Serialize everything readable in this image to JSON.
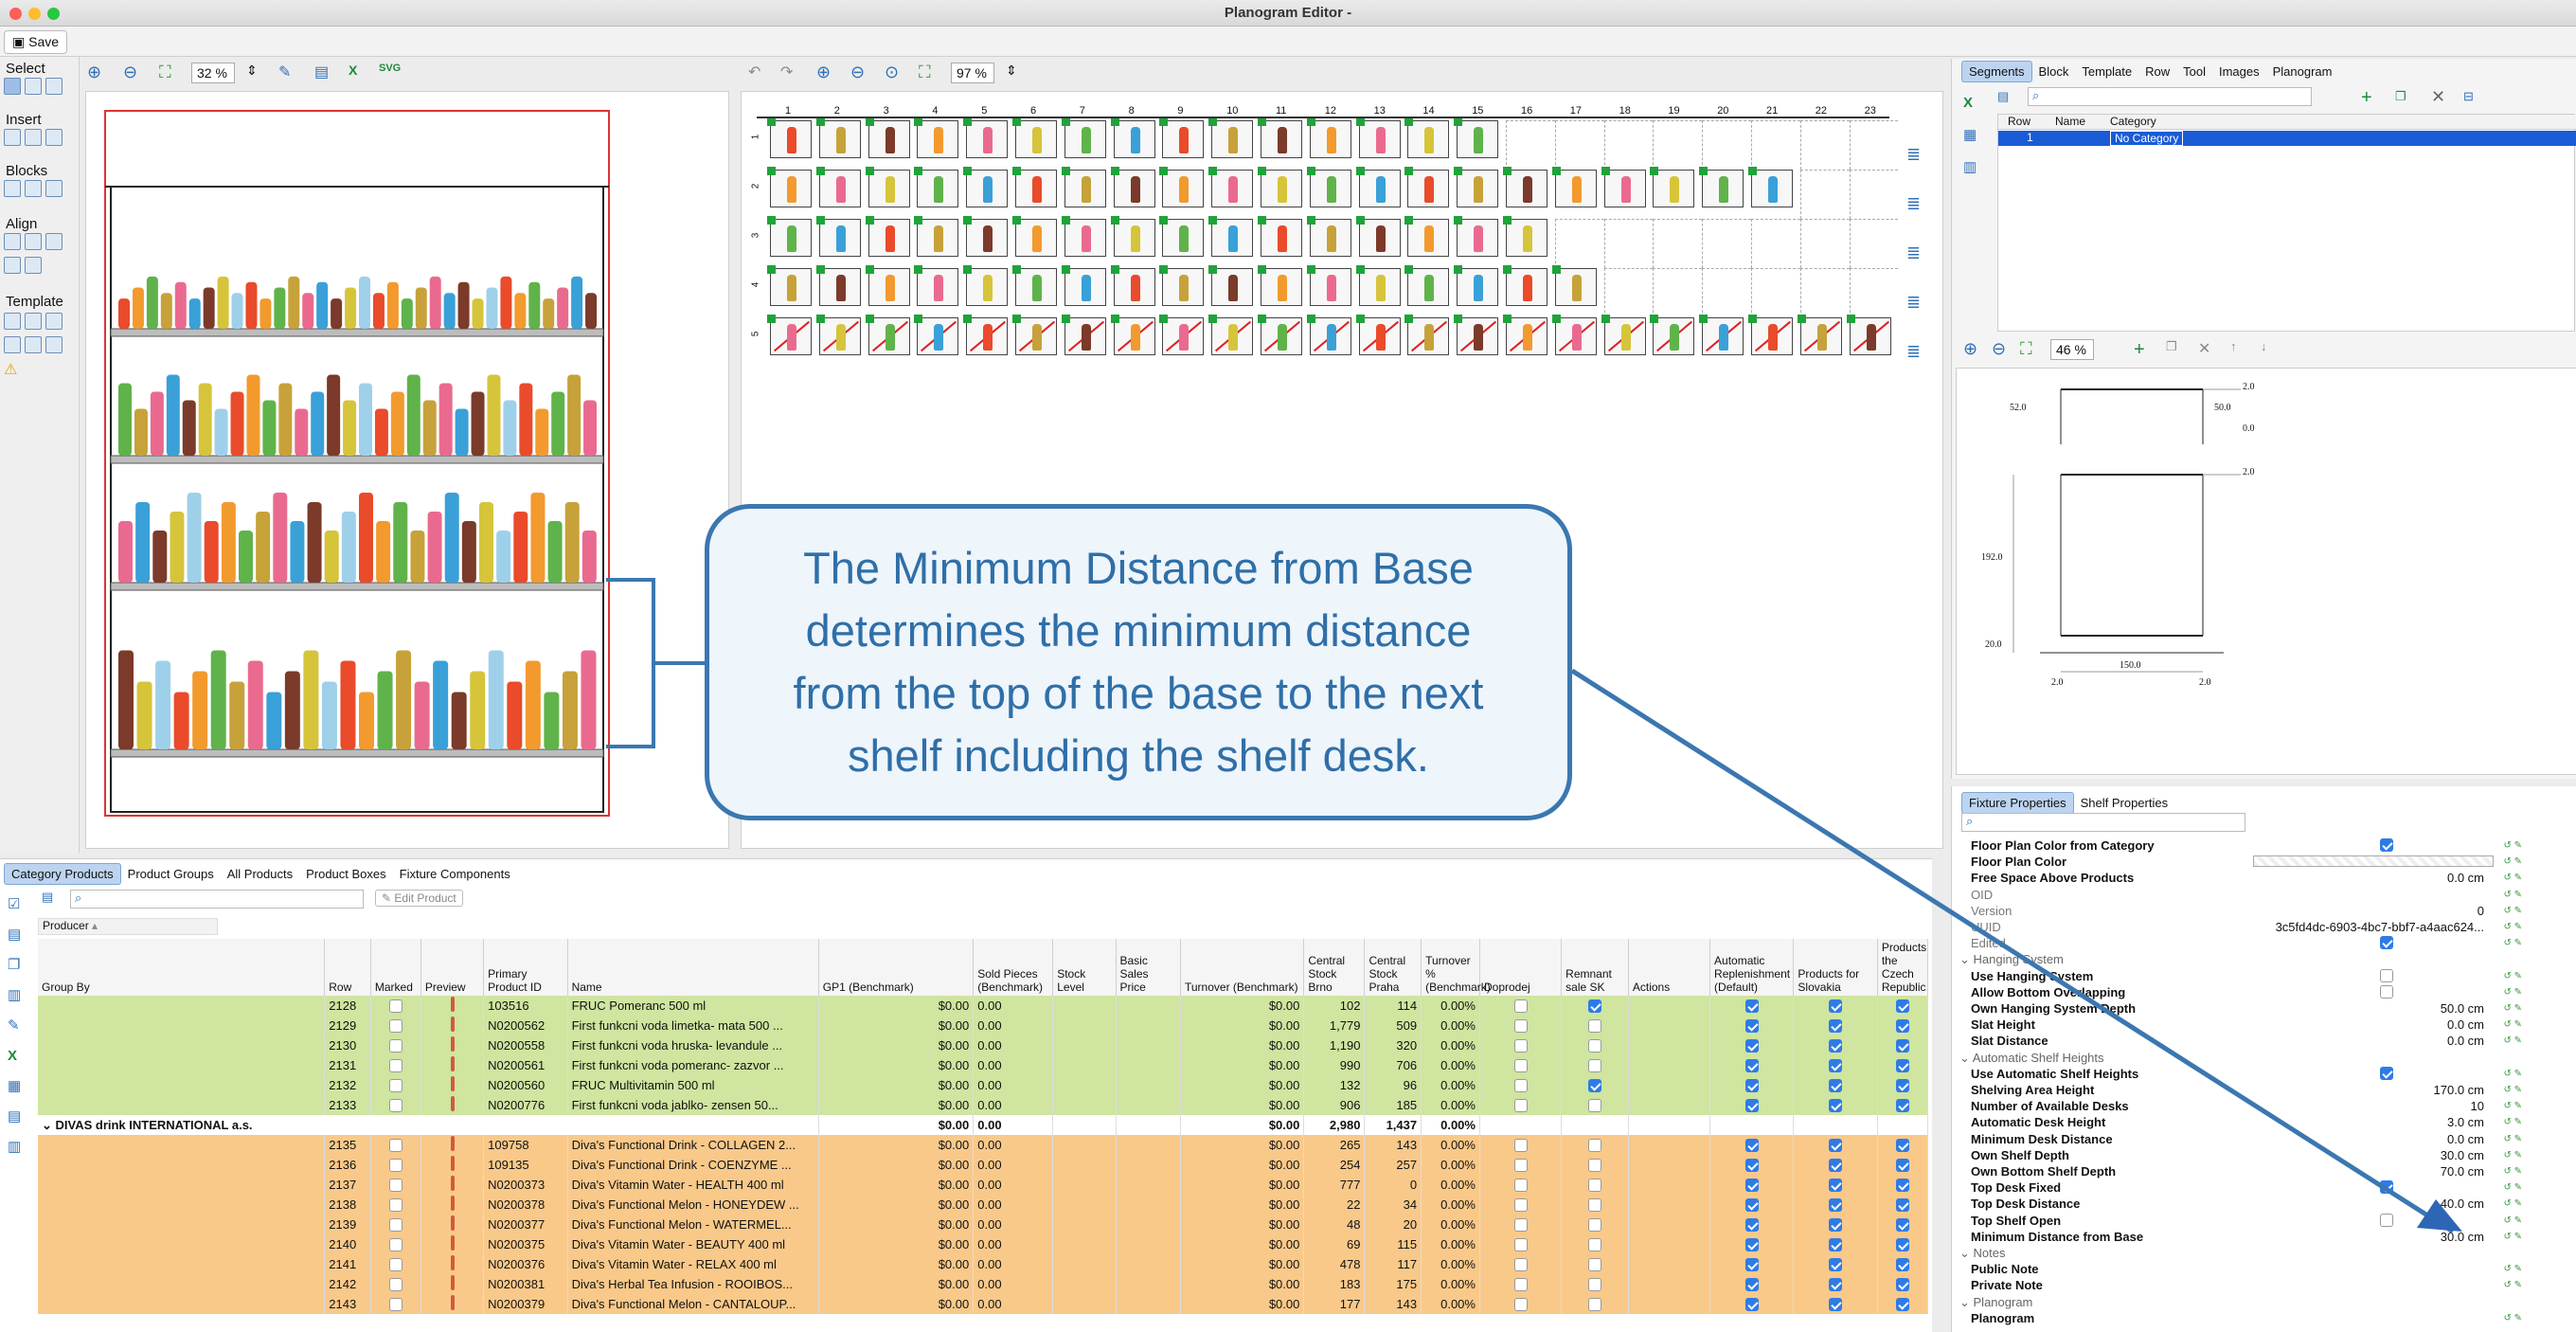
{
  "window": {
    "title": "Planogram Editor -"
  },
  "toolbar": {
    "save_label": "Save"
  },
  "palette": {
    "select_label": "Select",
    "insert_label": "Insert",
    "blocks_label": "Blocks",
    "align_label": "Align",
    "template_label": "Template"
  },
  "left_view": {
    "zoom": "32 %"
  },
  "mid_view": {
    "zoom": "97 %",
    "columns": [
      "1",
      "2",
      "3",
      "4",
      "5",
      "6",
      "7",
      "8",
      "9",
      "10",
      "11",
      "12",
      "13",
      "14",
      "15",
      "16",
      "17",
      "18",
      "19",
      "20",
      "21",
      "22",
      "23"
    ],
    "rows": [
      "1",
      "2",
      "3",
      "4",
      "5"
    ]
  },
  "segments_panel": {
    "tabs": [
      "Segments",
      "Block",
      "Template",
      "Row",
      "Tool",
      "Images",
      "Planogram"
    ],
    "columns": [
      "Row",
      "Name",
      "Category"
    ],
    "row": {
      "row": "1",
      "name": "",
      "category": "No Category"
    }
  },
  "fixture_view": {
    "zoom": "46 %",
    "dims": {
      "d1": "2.0",
      "d2": "52.0",
      "d3": "50.0",
      "d4": "0.0",
      "d5": "2.0",
      "d6": "192.0",
      "d7": "20.0",
      "d8": "150.0",
      "d9": "2.0",
      "d10": "2.0"
    }
  },
  "properties_panel": {
    "tabs": [
      "Fixture Properties",
      "Shelf Properties"
    ],
    "rows": [
      {
        "name": "Floor Plan Color from Category",
        "value": "",
        "check": "on"
      },
      {
        "name": "Floor Plan Color",
        "value": "",
        "check": ""
      },
      {
        "name": "Free Space Above Products",
        "value": "0.0 cm",
        "check": ""
      },
      {
        "name": "OID",
        "value": "",
        "check": "",
        "dim": true
      },
      {
        "name": "Version",
        "value": "0",
        "check": "",
        "dim": true
      },
      {
        "name": "UUID",
        "value": "3c5fd4dc-6903-4bc7-bbf7-a4aac624...",
        "check": "",
        "dim": true
      },
      {
        "name": "Edited",
        "value": "",
        "check": "on",
        "dim": true
      },
      {
        "name": "Hanging System",
        "value": "",
        "check": "",
        "cat": true
      },
      {
        "name": "Use Hanging System",
        "value": "",
        "check": "off"
      },
      {
        "name": "Allow Bottom Overlapping",
        "value": "",
        "check": "off"
      },
      {
        "name": "Own Hanging System Depth",
        "value": "50.0 cm",
        "check": ""
      },
      {
        "name": "Slat Height",
        "value": "0.0 cm",
        "check": ""
      },
      {
        "name": "Slat Distance",
        "value": "0.0 cm",
        "check": ""
      },
      {
        "name": "Automatic Shelf Heights",
        "value": "",
        "check": "",
        "cat": true
      },
      {
        "name": "Use Automatic Shelf Heights",
        "value": "",
        "check": "on"
      },
      {
        "name": "Shelving Area Height",
        "value": "170.0 cm",
        "check": ""
      },
      {
        "name": "Number of Available Desks",
        "value": "10",
        "check": ""
      },
      {
        "name": "Automatic Desk Height",
        "value": "3.0 cm",
        "check": ""
      },
      {
        "name": "Minimum Desk Distance",
        "value": "0.0 cm",
        "check": ""
      },
      {
        "name": "Own Shelf Depth",
        "value": "30.0 cm",
        "check": ""
      },
      {
        "name": "Own Bottom Shelf Depth",
        "value": "70.0 cm",
        "check": ""
      },
      {
        "name": "Top Desk Fixed",
        "value": "",
        "check": "on"
      },
      {
        "name": "Top Desk Distance",
        "value": "40.0 cm",
        "check": ""
      },
      {
        "name": "Top Shelf Open",
        "value": "",
        "check": "off"
      },
      {
        "name": "Minimum Distance from Base",
        "value": "30.0 cm",
        "check": ""
      },
      {
        "name": "Notes",
        "value": "",
        "check": "",
        "cat": true
      },
      {
        "name": "Public Note",
        "value": "",
        "check": ""
      },
      {
        "name": "Private Note",
        "value": "",
        "check": ""
      },
      {
        "name": "Planogram",
        "value": "",
        "check": "",
        "cat": true
      },
      {
        "name": "Planogram",
        "value": "",
        "check": ""
      }
    ]
  },
  "bottom_panel": {
    "tabs": [
      "Category Products",
      "Product Groups",
      "All Products",
      "Product Boxes",
      "Fixture Components"
    ],
    "edit_product": "Edit Product",
    "producer_label": "Producer",
    "columns": [
      "Group By",
      "Row",
      "Marked",
      "Preview",
      "Primary Product ID",
      "Name",
      "GP1 (Benchmark)",
      "Sold Pieces (Benchmark)",
      "Stock Level",
      "Basic Sales Price",
      "Turnover (Benchmark)",
      "Central Stock Brno",
      "Central Stock Praha",
      "Turnover % (Benchmark)",
      "Doprodej",
      "Remnant sale SK",
      "Actions",
      "Automatic Replenishment (Default)",
      "Products for Slovakia",
      "Products the Czech Republic"
    ],
    "rows_green": [
      {
        "row": "2128",
        "id": "103516",
        "name": "FRUC Pomeranc 500 ml",
        "gp1": "$0.00",
        "sold": "0.00",
        "turn": "$0.00",
        "brno": "102",
        "praha": "114",
        "pct": "0.00%",
        "rem": true
      },
      {
        "row": "2129",
        "id": "N0200562",
        "name": "First funkcni voda limetka- mata 500 ...",
        "gp1": "$0.00",
        "sold": "0.00",
        "turn": "$0.00",
        "brno": "1,779",
        "praha": "509",
        "pct": "0.00%",
        "rem": false
      },
      {
        "row": "2130",
        "id": "N0200558",
        "name": "First funkcni voda hruska- levandule ...",
        "gp1": "$0.00",
        "sold": "0.00",
        "turn": "$0.00",
        "brno": "1,190",
        "praha": "320",
        "pct": "0.00%",
        "rem": false
      },
      {
        "row": "2131",
        "id": "N0200561",
        "name": "First funkcni voda pomeranc- zazvor ...",
        "gp1": "$0.00",
        "sold": "0.00",
        "turn": "$0.00",
        "brno": "990",
        "praha": "706",
        "pct": "0.00%",
        "rem": false
      },
      {
        "row": "2132",
        "id": "N0200560",
        "name": "FRUC Multivitamin 500 ml",
        "gp1": "$0.00",
        "sold": "0.00",
        "turn": "$0.00",
        "brno": "132",
        "praha": "96",
        "pct": "0.00%",
        "rem": true
      },
      {
        "row": "2133",
        "id": "N0200776",
        "name": "First funkcni voda jablko- zensen 50...",
        "gp1": "$0.00",
        "sold": "0.00",
        "turn": "$0.00",
        "brno": "906",
        "praha": "185",
        "pct": "0.00%",
        "rem": false
      }
    ],
    "group": {
      "name": "DIVAS drink INTERNATIONAL a.s.",
      "gp1": "$0.00",
      "sold": "0.00",
      "turn": "$0.00",
      "brno": "2,980",
      "praha": "1,437",
      "pct": "0.00%"
    },
    "rows_orange": [
      {
        "row": "2135",
        "id": "109758",
        "name": "Diva's Functional Drink - COLLAGEN 2...",
        "gp1": "$0.00",
        "sold": "0.00",
        "turn": "$0.00",
        "brno": "265",
        "praha": "143",
        "pct": "0.00%"
      },
      {
        "row": "2136",
        "id": "109135",
        "name": "Diva's Functional Drink - COENZYME ...",
        "gp1": "$0.00",
        "sold": "0.00",
        "turn": "$0.00",
        "brno": "254",
        "praha": "257",
        "pct": "0.00%"
      },
      {
        "row": "2137",
        "id": "N0200373",
        "name": "Diva's Vitamin Water - HEALTH 400 ml",
        "gp1": "$0.00",
        "sold": "0.00",
        "turn": "$0.00",
        "brno": "777",
        "praha": "0",
        "pct": "0.00%"
      },
      {
        "row": "2138",
        "id": "N0200378",
        "name": "Diva's Functional Melon - HONEYDEW ...",
        "gp1": "$0.00",
        "sold": "0.00",
        "turn": "$0.00",
        "brno": "22",
        "praha": "34",
        "pct": "0.00%"
      },
      {
        "row": "2139",
        "id": "N0200377",
        "name": "Diva's Functional Melon - WATERMEL...",
        "gp1": "$0.00",
        "sold": "0.00",
        "turn": "$0.00",
        "brno": "48",
        "praha": "20",
        "pct": "0.00%"
      },
      {
        "row": "2140",
        "id": "N0200375",
        "name": "Diva's Vitamin Water - BEAUTY 400 ml",
        "gp1": "$0.00",
        "sold": "0.00",
        "turn": "$0.00",
        "brno": "69",
        "praha": "115",
        "pct": "0.00%"
      },
      {
        "row": "2141",
        "id": "N0200376",
        "name": "Diva's Vitamin Water - RELAX 400 ml",
        "gp1": "$0.00",
        "sold": "0.00",
        "turn": "$0.00",
        "brno": "478",
        "praha": "117",
        "pct": "0.00%"
      },
      {
        "row": "2142",
        "id": "N0200381",
        "name": "Diva's Herbal Tea Infusion - ROOIBOS...",
        "gp1": "$0.00",
        "sold": "0.00",
        "turn": "$0.00",
        "brno": "183",
        "praha": "175",
        "pct": "0.00%"
      },
      {
        "row": "2143",
        "id": "N0200379",
        "name": "Diva's Functional Melon - CANTALOUP...",
        "gp1": "$0.00",
        "sold": "0.00",
        "turn": "$0.00",
        "brno": "177",
        "praha": "143",
        "pct": "0.00%"
      }
    ]
  },
  "callout": {
    "text": "The Minimum Distance from Base determines the minimum distance from the top of the base to the next shelf including the shelf desk."
  },
  "colors": {
    "accent": "#2f7be6",
    "callout_border": "#3b77b0",
    "callout_text": "#2f6fa8",
    "green_row": "#cfe5a0",
    "orange_row": "#f9c98a",
    "selection": "#1a5bd6"
  }
}
